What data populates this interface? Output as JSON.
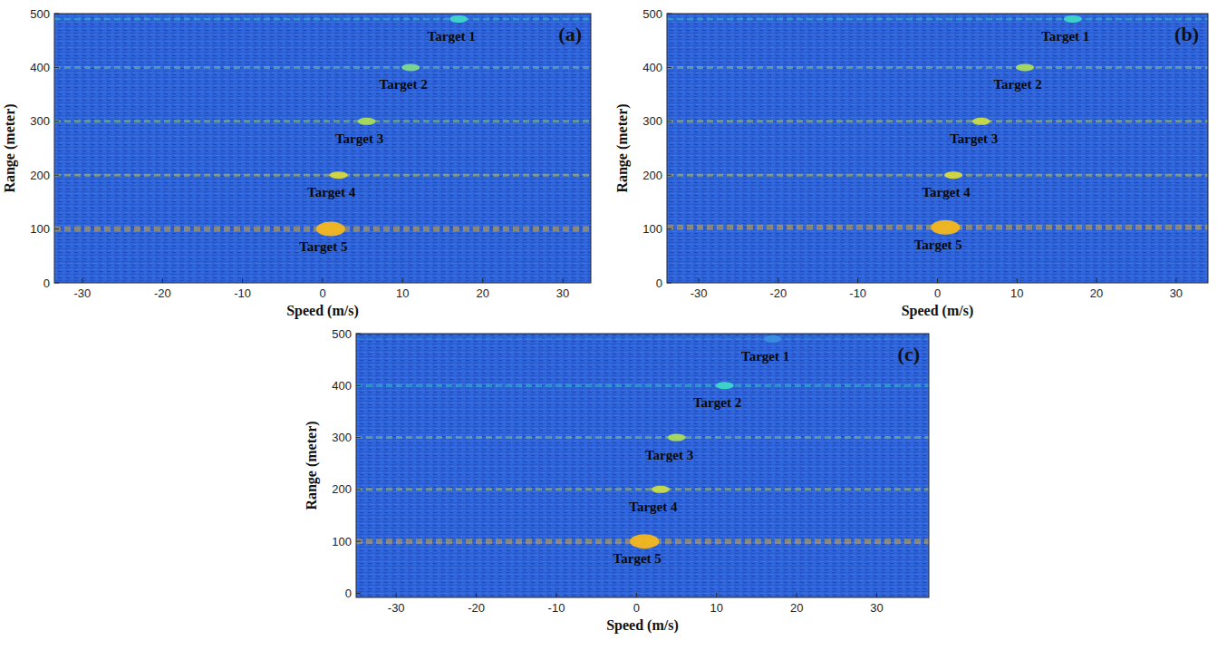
{
  "chart_data": [
    {
      "type": "scatter",
      "title": "(a)",
      "x_label": "Speed (m/s)",
      "y_label": "Range (meter)",
      "x": [
        17,
        11,
        5.5,
        2,
        1
      ],
      "values": [
        490,
        400,
        300,
        200,
        100
      ],
      "annotations": [
        "Target 1",
        "Target 2",
        "Target 3",
        "Target 4",
        "Target 5"
      ],
      "colors": [
        "#3fd6c8",
        "#7fd88a",
        "#a9dc5a",
        "#d6d840",
        "#f5b81c"
      ],
      "xlim": [
        -33.5,
        33.5
      ],
      "xticks": [
        -30,
        -20,
        -10,
        0,
        10,
        20,
        30
      ],
      "ylim": [
        0,
        500
      ],
      "yticks": [
        0,
        100,
        200,
        300,
        400,
        500
      ]
    },
    {
      "type": "scatter",
      "title": "(b)",
      "x_label": "Speed (m/s)",
      "y_label": "Range (meter)",
      "x": [
        17,
        11,
        5.5,
        2,
        1
      ],
      "values": [
        490,
        400,
        300,
        200,
        103
      ],
      "annotations": [
        "Target 1",
        "Target 2",
        "Target 3",
        "Target 4",
        "Target 5"
      ],
      "colors": [
        "#3fd6c8",
        "#a9dc5a",
        "#c9dc48",
        "#d6d840",
        "#f5b81c"
      ],
      "xlim": [
        -34,
        34
      ],
      "xticks": [
        -30,
        -20,
        -10,
        0,
        10,
        20,
        30
      ],
      "ylim": [
        0,
        500
      ],
      "yticks": [
        0,
        100,
        200,
        300,
        400,
        500
      ]
    },
    {
      "type": "scatter",
      "title": "(c)",
      "x_label": "Speed (m/s)",
      "y_label": "Range (meter)",
      "x": [
        17,
        11,
        5,
        3,
        1
      ],
      "values": [
        490,
        400,
        300,
        200,
        100
      ],
      "annotations": [
        "Target 1",
        "Target 2",
        "Target 3",
        "Target 4",
        "Target 5"
      ],
      "colors": [
        "#3a8fe0",
        "#3fd6c8",
        "#a9dc5a",
        "#c9dc48",
        "#f5b81c"
      ],
      "xlim": [
        -35,
        36.5
      ],
      "xticks": [
        -30,
        -20,
        -10,
        0,
        10,
        20,
        30
      ],
      "ylim": [
        -8,
        500
      ],
      "yticks": [
        0,
        100,
        200,
        300,
        400,
        500
      ]
    }
  ]
}
